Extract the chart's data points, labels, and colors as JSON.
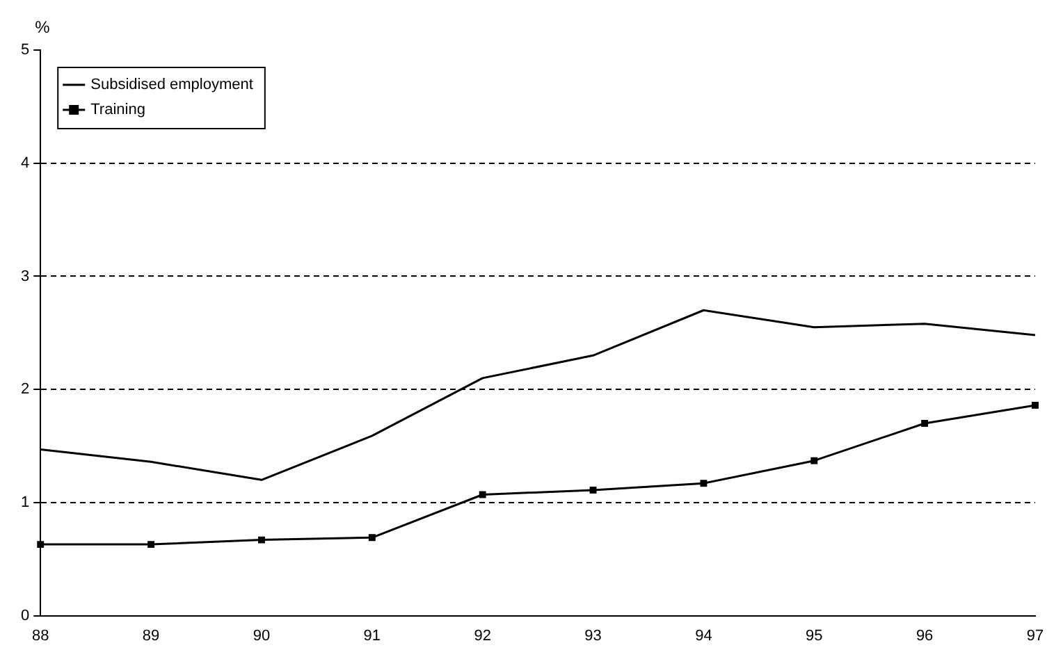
{
  "chart_data": {
    "type": "line",
    "ylabel": "%",
    "categories": [
      "88",
      "89",
      "90",
      "91",
      "92",
      "93",
      "94",
      "95",
      "96",
      "97"
    ],
    "series": [
      {
        "name": "Subsidised employment",
        "color": "#000000",
        "marker": "none",
        "values": [
          1.47,
          1.36,
          1.2,
          1.59,
          2.1,
          2.3,
          2.7,
          2.55,
          2.58,
          2.48
        ]
      },
      {
        "name": "Training",
        "color": "#000000",
        "marker": "square",
        "values": [
          0.63,
          0.63,
          0.67,
          0.69,
          1.07,
          1.11,
          1.17,
          1.37,
          1.7,
          1.86
        ]
      }
    ],
    "ylim": [
      0,
      5
    ],
    "yticks": [
      0,
      1,
      2,
      3,
      4,
      5
    ],
    "grid": "y",
    "line_style": "solid",
    "legend": "top left"
  }
}
